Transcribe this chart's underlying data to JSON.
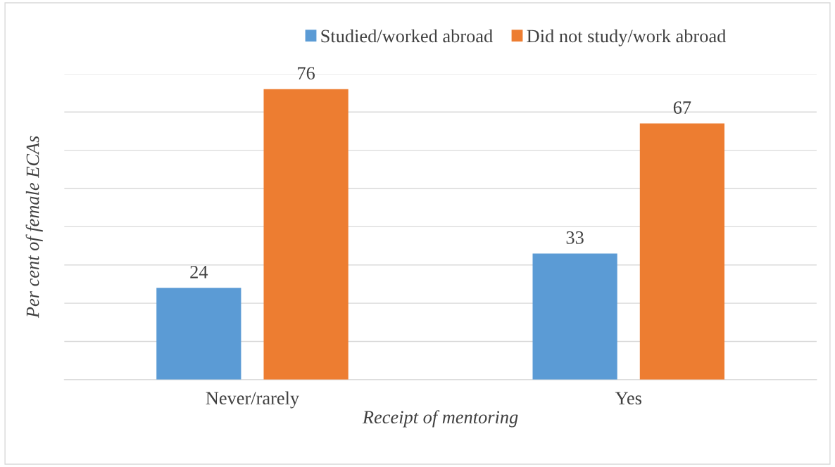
{
  "chart_data": {
    "type": "bar",
    "xlabel": "Receipt of mentoring",
    "ylabel": "Per cent of female ECAs",
    "categories": [
      "Never/rarely",
      "Yes"
    ],
    "series": [
      {
        "name": "Studied/worked abroad",
        "color": "#5b9bd5",
        "values": [
          24,
          33
        ]
      },
      {
        "name": "Did not study/work abroad",
        "color": "#ed7d31",
        "values": [
          76,
          67
        ]
      }
    ],
    "ylim": [
      0,
      80
    ],
    "yticks": [
      {
        "value": 0,
        "label": null
      },
      {
        "value": 10,
        "label": null
      },
      {
        "value": 20,
        "label": null
      },
      {
        "value": 30,
        "label": null
      },
      {
        "value": 40,
        "label": null
      },
      {
        "value": 50,
        "label": null
      },
      {
        "value": 60,
        "label": null
      },
      {
        "value": 70,
        "label": null
      },
      {
        "value": 80,
        "label": null
      }
    ],
    "tick_labels": "x",
    "grid": "y",
    "legend": "top",
    "data_labels": true
  }
}
